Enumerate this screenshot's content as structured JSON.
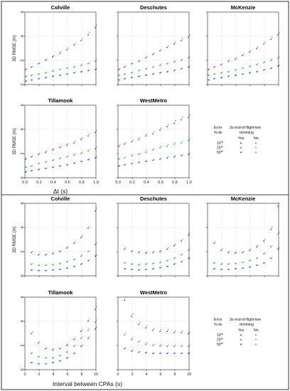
{
  "figure": {
    "top_section": {
      "xlabel": "Δt (s)",
      "ylabel": "3D RMSE (m)"
    },
    "bottom_section": {
      "xlabel": "Interval between CPAs (s)",
      "ylabel": "3D RMSE (m)"
    }
  },
  "legend": {
    "col1": "Error",
    "col1b": "%-ile",
    "col2": "3s end-of-flight-line",
    "col2b": "trimming",
    "yes": "Yes",
    "no": "No",
    "rows": [
      {
        "label": "10",
        "sup": "th"
      },
      {
        "label": "25",
        "sup": "th"
      },
      {
        "label": "50",
        "sup": "th"
      }
    ]
  },
  "colors": {
    "p10": "#1f3fcf",
    "p25": "#2aa12a",
    "p50": "#b02020",
    "grid": "#bbbbbb"
  },
  "chart_data": [
    {
      "type": "scatter",
      "title": "Colville",
      "xlim": [
        0,
        1
      ],
      "ylim": [
        0,
        6
      ],
      "x": [
        0.02,
        0.1,
        0.2,
        0.3,
        0.4,
        0.5,
        0.6,
        0.7,
        0.8,
        0.9,
        1.0
      ],
      "series": [
        {
          "percentile": "10th",
          "values": [
            0.3,
            0.4,
            0.5,
            0.6,
            0.7,
            0.8,
            0.9,
            1.0,
            1.1,
            1.2,
            1.3
          ]
        },
        {
          "percentile": "25th",
          "values": [
            0.7,
            0.8,
            0.9,
            1.0,
            1.15,
            1.3,
            1.4,
            1.5,
            1.65,
            1.8,
            2.0
          ]
        },
        {
          "percentile": "50th",
          "values": [
            1.3,
            1.5,
            1.8,
            2.1,
            2.4,
            2.7,
            3.0,
            3.4,
            3.8,
            4.3,
            4.9
          ]
        }
      ]
    },
    {
      "type": "scatter",
      "title": "Deschutes",
      "xlim": [
        0,
        1
      ],
      "ylim": [
        0,
        6
      ],
      "x": [
        0.02,
        0.1,
        0.2,
        0.3,
        0.4,
        0.5,
        0.6,
        0.7,
        0.8,
        0.9,
        1.0
      ],
      "series": [
        {
          "percentile": "10th",
          "values": [
            0.4,
            0.5,
            0.6,
            0.7,
            0.8,
            0.9,
            1.0,
            1.1,
            1.2,
            1.35,
            1.5
          ]
        },
        {
          "percentile": "25th",
          "values": [
            0.8,
            0.9,
            1.0,
            1.2,
            1.35,
            1.5,
            1.65,
            1.8,
            1.95,
            2.1,
            2.3
          ]
        },
        {
          "percentile": "50th",
          "values": [
            1.3,
            1.5,
            1.8,
            2.0,
            2.3,
            2.6,
            2.9,
            3.2,
            3.5,
            3.8,
            4.1
          ]
        }
      ]
    },
    {
      "type": "scatter",
      "title": "McKenzie",
      "xlim": [
        0,
        1
      ],
      "ylim": [
        0,
        6
      ],
      "x": [
        0.02,
        0.1,
        0.2,
        0.3,
        0.4,
        0.5,
        0.6,
        0.7,
        0.8,
        0.9,
        1.0
      ],
      "series": [
        {
          "percentile": "10th",
          "values": [
            0.4,
            0.5,
            0.6,
            0.7,
            0.8,
            0.9,
            1.0,
            1.1,
            1.25,
            1.4,
            1.6
          ]
        },
        {
          "percentile": "25th",
          "values": [
            0.8,
            0.9,
            1.0,
            1.1,
            1.25,
            1.4,
            1.55,
            1.7,
            1.9,
            2.1,
            2.3
          ]
        },
        {
          "percentile": "50th",
          "values": [
            1.3,
            1.5,
            1.7,
            2.0,
            2.2,
            2.5,
            2.8,
            3.1,
            3.5,
            3.9,
            4.3
          ]
        }
      ]
    },
    {
      "type": "scatter",
      "title": "Tillamook",
      "xlim": [
        0,
        1
      ],
      "ylim": [
        0,
        6
      ],
      "x": [
        0.02,
        0.1,
        0.2,
        0.3,
        0.4,
        0.5,
        0.6,
        0.7,
        0.8,
        0.9,
        1.0
      ],
      "series": [
        {
          "percentile": "10th",
          "values": [
            0.5,
            0.6,
            0.7,
            0.8,
            0.9,
            1.0,
            1.1,
            1.25,
            1.4,
            1.55,
            1.7
          ]
        },
        {
          "percentile": "25th",
          "values": [
            0.9,
            1.0,
            1.2,
            1.35,
            1.5,
            1.65,
            1.8,
            1.95,
            2.1,
            2.3,
            2.5
          ]
        },
        {
          "percentile": "50th",
          "values": [
            1.6,
            1.8,
            2.0,
            2.2,
            2.4,
            2.6,
            2.8,
            3.0,
            3.3,
            3.6,
            3.9
          ]
        }
      ]
    },
    {
      "type": "scatter",
      "title": "WestMetro",
      "xlim": [
        0,
        1
      ],
      "ylim": [
        0,
        6
      ],
      "x": [
        0.02,
        0.1,
        0.2,
        0.3,
        0.4,
        0.5,
        0.6,
        0.7,
        0.8,
        0.9,
        1.0
      ],
      "series": [
        {
          "percentile": "10th",
          "values": [
            1.0,
            1.1,
            1.2,
            1.3,
            1.4,
            1.5,
            1.6,
            1.7,
            1.8,
            1.9,
            2.0
          ]
        },
        {
          "percentile": "25th",
          "values": [
            1.6,
            1.7,
            1.9,
            2.0,
            2.2,
            2.4,
            2.6,
            2.7,
            2.9,
            3.0,
            3.2
          ]
        },
        {
          "percentile": "50th",
          "values": [
            2.7,
            2.9,
            3.1,
            3.3,
            3.6,
            3.8,
            4.1,
            4.4,
            4.7,
            5.0,
            5.2
          ]
        }
      ]
    },
    {
      "type": "scatter",
      "title": "Colville",
      "xlim": [
        0,
        10
      ],
      "ylim": [
        0,
        6
      ],
      "x": [
        1,
        2,
        3,
        4,
        5,
        6,
        7,
        8,
        9,
        10
      ],
      "series": [
        {
          "percentile": "10th",
          "values": [
            0.5,
            0.45,
            0.45,
            0.5,
            0.55,
            0.65,
            0.8,
            1.0,
            1.3,
            1.7
          ]
        },
        {
          "percentile": "25th",
          "values": [
            1.0,
            0.9,
            0.9,
            0.95,
            1.05,
            1.2,
            1.4,
            1.7,
            2.1,
            2.7
          ]
        },
        {
          "percentile": "50th",
          "values": [
            2.0,
            1.8,
            1.8,
            1.9,
            2.1,
            2.4,
            2.8,
            3.3,
            4.1,
            5.6
          ]
        }
      ]
    },
    {
      "type": "scatter",
      "title": "Deschutes",
      "xlim": [
        0,
        10
      ],
      "ylim": [
        0,
        6
      ],
      "x": [
        1,
        2,
        3,
        4,
        5,
        6,
        7,
        8,
        9,
        10
      ],
      "series": [
        {
          "percentile": "10th",
          "values": [
            0.6,
            0.55,
            0.5,
            0.55,
            0.6,
            0.7,
            0.8,
            1.0,
            1.2,
            1.5
          ]
        },
        {
          "percentile": "25th",
          "values": [
            1.1,
            1.0,
            0.95,
            1.0,
            1.05,
            1.15,
            1.3,
            1.5,
            1.8,
            2.2
          ]
        },
        {
          "percentile": "50th",
          "values": [
            2.3,
            2.1,
            2.0,
            1.95,
            2.0,
            2.1,
            2.3,
            2.6,
            3.0,
            3.5
          ]
        }
      ]
    },
    {
      "type": "scatter",
      "title": "McKenzie",
      "xlim": [
        0,
        10
      ],
      "ylim": [
        0,
        6
      ],
      "x": [
        1,
        2,
        3,
        4,
        5,
        6,
        7,
        8,
        9,
        10
      ],
      "series": [
        {
          "percentile": "10th",
          "values": [
            0.6,
            0.55,
            0.55,
            0.6,
            0.65,
            0.75,
            0.9,
            1.1,
            1.5,
            2.3
          ]
        },
        {
          "percentile": "25th",
          "values": [
            1.1,
            1.0,
            1.0,
            1.05,
            1.15,
            1.3,
            1.5,
            1.9,
            2.5,
            3.6
          ]
        },
        {
          "percentile": "50th",
          "values": [
            2.8,
            2.2,
            2.0,
            1.95,
            2.0,
            2.2,
            2.5,
            3.0,
            4.0,
            6.0
          ]
        }
      ]
    },
    {
      "type": "scatter",
      "title": "Tillamook",
      "xlim": [
        0,
        10
      ],
      "ylim": [
        0,
        6
      ],
      "x": [
        1,
        2,
        3,
        4,
        5,
        6,
        7,
        8,
        9,
        10
      ],
      "series": [
        {
          "percentile": "10th",
          "values": [
            0.6,
            0.5,
            0.5,
            0.6,
            0.75,
            1.0,
            1.4,
            2.0,
            2.7,
            3.5
          ]
        },
        {
          "percentile": "25th",
          "values": [
            1.4,
            1.1,
            1.0,
            1.0,
            1.2,
            1.5,
            2.0,
            2.7,
            3.4,
            4.1
          ]
        },
        {
          "percentile": "50th",
          "values": [
            3.1,
            2.3,
            1.8,
            1.7,
            1.8,
            2.1,
            2.6,
            3.3,
            4.2,
            5.2
          ]
        }
      ]
    },
    {
      "type": "scatter",
      "title": "WestMetro",
      "xlim": [
        0,
        10
      ],
      "ylim": [
        0,
        6
      ],
      "x": [
        1,
        2,
        3,
        4,
        5,
        6,
        7,
        8,
        9,
        10
      ],
      "series": [
        {
          "percentile": "10th",
          "values": [
            1.8,
            1.6,
            1.5,
            1.45,
            1.4,
            1.4,
            1.4,
            1.4,
            1.4,
            1.4
          ]
        },
        {
          "percentile": "25th",
          "values": [
            3.0,
            2.6,
            2.4,
            2.2,
            2.1,
            2.05,
            2.0,
            2.0,
            2.0,
            2.0
          ]
        },
        {
          "percentile": "50th",
          "values": [
            6.0,
            4.6,
            3.9,
            3.6,
            3.4,
            3.3,
            3.3,
            3.2,
            3.2,
            3.1
          ]
        }
      ]
    }
  ]
}
